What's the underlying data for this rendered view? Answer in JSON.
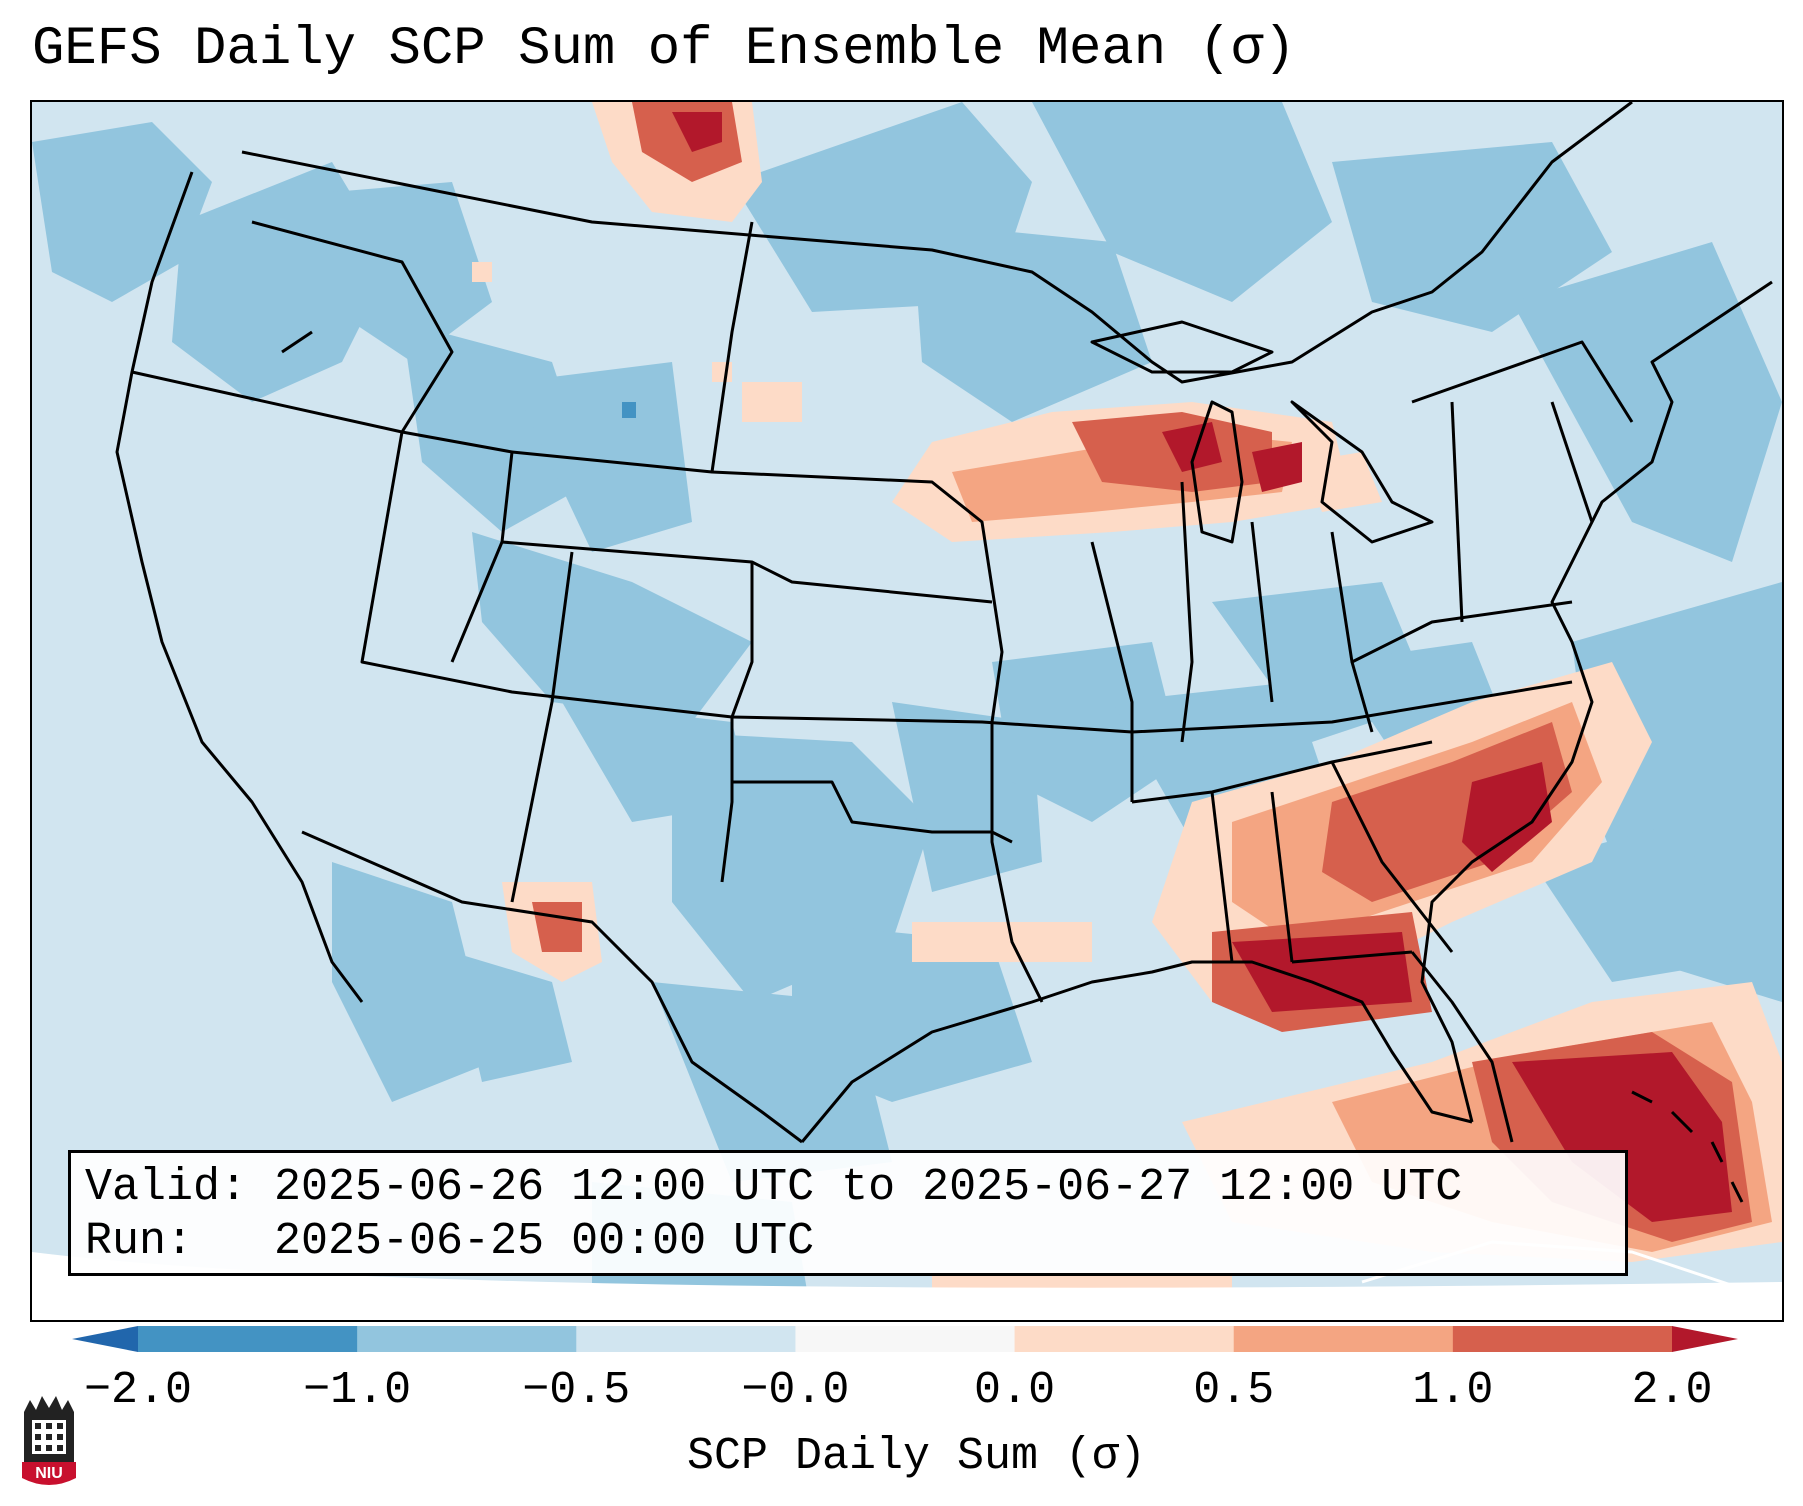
{
  "title": "GEFS Daily SCP Sum of Ensemble Mean (σ)",
  "info": {
    "valid_line": "Valid: 2025-06-26 12:00 UTC to 2025-06-27 12:00 UTC",
    "run_line": "Run:   2025-06-25 00:00 UTC"
  },
  "colorbar": {
    "label": "SCP Daily Sum (σ)",
    "ticks": [
      "−2.0",
      "−1.0",
      "−0.5",
      "−0.0",
      "0.0",
      "0.5",
      "1.0",
      "2.0"
    ],
    "bins": [
      {
        "range": "< -2.0",
        "color": "#2166ac"
      },
      {
        "range": "-2.0 to -1.0",
        "color": "#4393c3"
      },
      {
        "range": "-1.0 to -0.5",
        "color": "#92c5de"
      },
      {
        "range": "-0.5 to -0.0",
        "color": "#d1e5f0"
      },
      {
        "range": "-0.0 to 0.0",
        "color": "#f7f7f7"
      },
      {
        "range": "0.0 to 0.5",
        "color": "#fddbc7"
      },
      {
        "range": "0.5 to 1.0",
        "color": "#f4a582"
      },
      {
        "range": "1.0 to 2.0",
        "color": "#d6604d"
      },
      {
        "range": "> 2.0",
        "color": "#b2182b"
      }
    ]
  },
  "logo": {
    "name": "NIU",
    "text": "NIU",
    "color": "#c8102e"
  },
  "map": {
    "region": "Contiguous United States",
    "high_anomaly_regions": [
      "Southeast Georgia / Florida Panhandle",
      "Carolinas coast",
      "Southern Great Lakes",
      "Bahamas / Straits of Florida",
      "Southern Saskatchewan",
      "Southeast New Mexico"
    ]
  }
}
